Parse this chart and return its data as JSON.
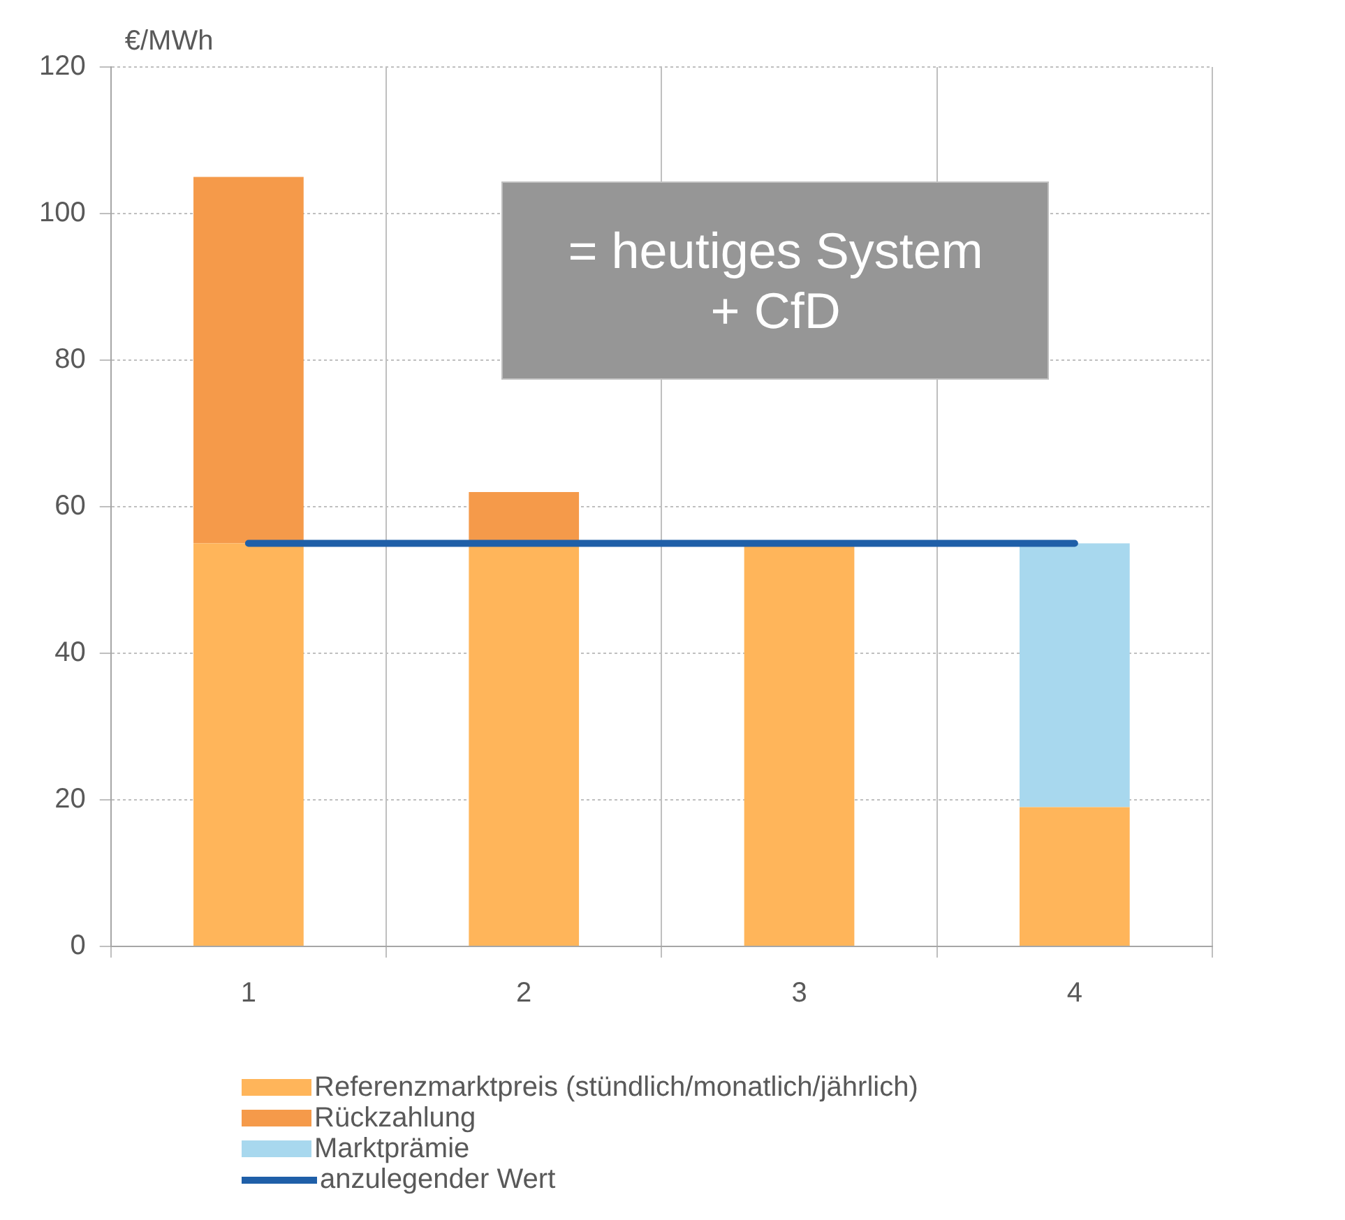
{
  "chart_data": {
    "type": "bar",
    "ylabel": "€/MWh",
    "categories": [
      "1",
      "2",
      "3",
      "4"
    ],
    "stacked": true,
    "series": [
      {
        "name": "Referenzmarktpreis (stündlich/monatlich/jährlich)",
        "color": "#ffb55a",
        "values": [
          55,
          55,
          55,
          19
        ]
      },
      {
        "name": "Rückzahlung",
        "color": "#f59a4a",
        "values": [
          50,
          7,
          null,
          null
        ]
      },
      {
        "name": "Marktprämie",
        "color": "#a8d8ee",
        "values": [
          null,
          null,
          null,
          36
        ]
      },
      {
        "name": "anzulegender Wert",
        "type": "line",
        "color": "#1f5fa8",
        "values": [
          55,
          55,
          55,
          55
        ]
      }
    ],
    "ylim": [
      0,
      120
    ],
    "yticks": [
      0,
      20,
      40,
      60,
      80,
      100,
      120
    ],
    "grid": true,
    "legend": "bottom",
    "marker": "none",
    "annotations": [
      "= heutiges System\n+ CfD"
    ]
  }
}
